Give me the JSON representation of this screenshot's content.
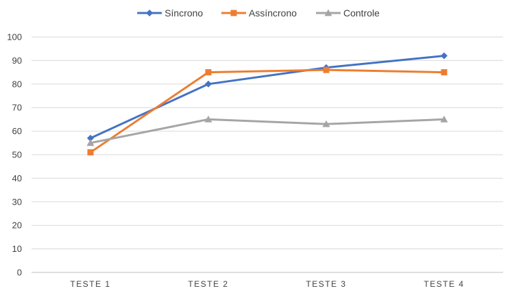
{
  "chart_data": {
    "type": "line",
    "title": "",
    "xlabel": "",
    "ylabel": "",
    "categories": [
      "TESTE 1",
      "TESTE 2",
      "TESTE 3",
      "TESTE 4"
    ],
    "ylim": [
      0,
      100
    ],
    "yticks": [
      0,
      10,
      20,
      30,
      40,
      50,
      60,
      70,
      80,
      90,
      100
    ],
    "grid": true,
    "legend_position": "top",
    "series": [
      {
        "name": "Síncrono",
        "values": [
          57,
          80,
          87,
          92
        ],
        "color": "#4472C4",
        "marker": "diamond"
      },
      {
        "name": "Assíncrono",
        "values": [
          51,
          85,
          86,
          85
        ],
        "color": "#ED7D31",
        "marker": "square"
      },
      {
        "name": "Controle",
        "values": [
          55,
          65,
          63,
          65
        ],
        "color": "#A5A5A5",
        "marker": "triangle"
      }
    ]
  }
}
